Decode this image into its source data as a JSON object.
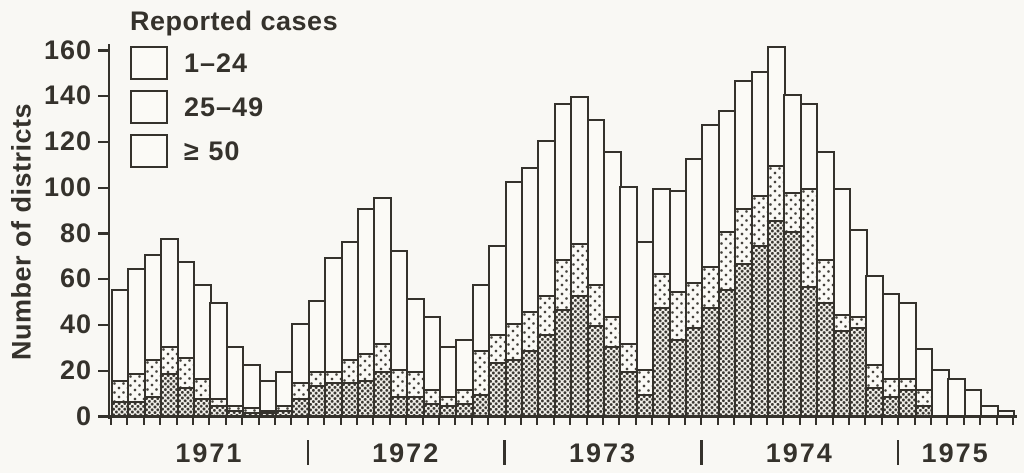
{
  "figure": {
    "y_axis_title": "Number of districts",
    "legend": {
      "title": "Reported cases",
      "items": [
        {
          "label": "1–24",
          "pattern": "plain"
        },
        {
          "label": "25–49",
          "pattern": "sparse-dots"
        },
        {
          "label": "≥ 50",
          "pattern": "dense-dots"
        }
      ]
    },
    "ink_color": "#35322c",
    "paper_color": "#f9f8f4"
  },
  "chart_data": {
    "type": "bar",
    "stacked": true,
    "title": "",
    "xlabel": "",
    "ylabel": "Number of districts",
    "ylim": [
      0,
      160
    ],
    "yticks": [
      0,
      20,
      40,
      60,
      80,
      100,
      120,
      140,
      160
    ],
    "grid": false,
    "legend_position": "top-left",
    "note": "Monthly stacked bars of number of districts, by reported-case band; ≥50 plotted at bottom, 25–49 in middle, 1–24 on top.",
    "years": [
      {
        "label": "1971",
        "months": 12
      },
      {
        "label": "1972",
        "months": 12
      },
      {
        "label": "1973",
        "months": 12
      },
      {
        "label": "1974",
        "months": 12
      },
      {
        "label": "1975",
        "months": 7
      }
    ],
    "series_order_bottom_to_top": [
      "≥ 50",
      "25–49",
      "1–24"
    ],
    "series": [
      {
        "name": "1–24",
        "values": [
          40,
          46,
          46,
          47,
          42,
          41,
          42,
          26,
          19,
          13,
          15,
          26,
          31,
          50,
          52,
          63,
          64,
          52,
          32,
          32,
          22,
          22,
          29,
          39,
          62,
          63,
          68,
          68,
          64,
          72,
          72,
          69,
          56,
          37,
          44,
          54,
          62,
          53,
          56,
          54,
          52,
          43,
          37,
          47,
          55,
          38,
          39,
          37,
          33,
          18,
          20,
          16,
          11,
          4,
          2
        ]
      },
      {
        "name": "25–49",
        "values": [
          9,
          12,
          16,
          12,
          13,
          9,
          3,
          2,
          2,
          1,
          2,
          7,
          6,
          5,
          10,
          12,
          12,
          12,
          11,
          6,
          4,
          6,
          19,
          12,
          16,
          17,
          17,
          22,
          23,
          18,
          13,
          12,
          11,
          15,
          21,
          20,
          18,
          25,
          24,
          22,
          24,
          17,
          43,
          19,
          7,
          5,
          10,
          8,
          5,
          7,
          0,
          0,
          0,
          0,
          0
        ]
      },
      {
        "name": "≥ 50",
        "values": [
          6,
          6,
          8,
          18,
          12,
          7,
          4,
          2,
          1,
          1,
          2,
          7,
          13,
          14,
          14,
          15,
          19,
          8,
          8,
          5,
          4,
          5,
          9,
          23,
          24,
          28,
          35,
          46,
          52,
          39,
          30,
          19,
          9,
          47,
          33,
          38,
          47,
          55,
          66,
          74,
          85,
          80,
          56,
          49,
          37,
          38,
          12,
          8,
          11,
          4,
          0,
          0,
          0,
          0,
          0
        ]
      }
    ],
    "bar_totals": [
      55,
      64,
      70,
      77,
      67,
      57,
      49,
      30,
      22,
      15,
      19,
      40,
      50,
      69,
      76,
      90,
      95,
      72,
      51,
      43,
      30,
      33,
      57,
      74,
      102,
      108,
      120,
      136,
      139,
      129,
      115,
      100,
      76,
      99,
      98,
      112,
      127,
      133,
      146,
      150,
      161,
      140,
      136,
      115,
      99,
      81,
      61,
      53,
      49,
      29,
      20,
      16,
      11,
      4,
      2
    ]
  }
}
